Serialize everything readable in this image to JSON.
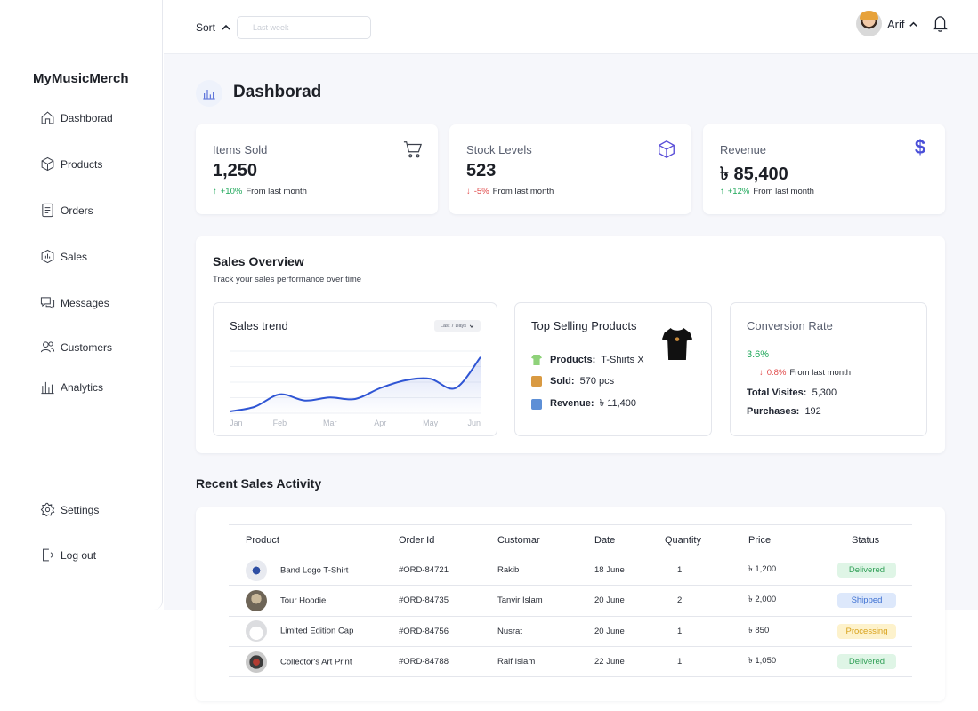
{
  "brand": "MyMusicMerch",
  "sidebar": {
    "items": [
      {
        "label": "Dashborad",
        "icon": "home-icon"
      },
      {
        "label": "Products",
        "icon": "box-icon"
      },
      {
        "label": "Orders",
        "icon": "document-icon"
      },
      {
        "label": "Sales",
        "icon": "sales-icon"
      },
      {
        "label": "Messages",
        "icon": "chat-icon"
      },
      {
        "label": "Customers",
        "icon": "users-icon"
      },
      {
        "label": "Analytics",
        "icon": "bar-chart-icon"
      }
    ],
    "bottom": [
      {
        "label": "Settings",
        "icon": "gear-icon"
      },
      {
        "label": "Log out",
        "icon": "logout-icon"
      }
    ]
  },
  "topbar": {
    "sort_label": "Sort",
    "date_placeholder": "Last week",
    "user_name": "Arif"
  },
  "page": {
    "title": "Dashborad"
  },
  "stats": [
    {
      "label": "Items Sold",
      "value": "1,250",
      "change": "+10%",
      "change_text": "From last month",
      "direction": "up",
      "icon": "cart-icon"
    },
    {
      "label": "Stock Levels",
      "value": "523",
      "change": "-5%",
      "change_text": "From last month",
      "direction": "down",
      "icon": "cube-icon"
    },
    {
      "label": "Revenue",
      "value": "৳ 85,400",
      "change": "+12%",
      "change_text": "From last month",
      "direction": "up",
      "icon": "dollar-icon"
    }
  ],
  "overview": {
    "title": "Sales Overview",
    "subtitle": "Track your sales performance over time",
    "trend": {
      "title": "Sales trend",
      "range_label": "Last 7 Days"
    },
    "top_product": {
      "title": "Top Selling Products",
      "product_label": "Products:",
      "product_value": "T-Shirts X",
      "sold_label": "Sold:",
      "sold_value": "570 pcs",
      "revenue_label": "Revenue:",
      "revenue_value": "৳ 11,400"
    },
    "conversion": {
      "title": "Conversion Rate",
      "rate": "3.6%",
      "change": "0.8%",
      "change_text": "From last month",
      "visits_label": "Total Visites:",
      "visits_value": "5,300",
      "purchases_label": "Purchases:",
      "purchases_value": "192"
    }
  },
  "chart_data": {
    "type": "area",
    "categories": [
      "Jan",
      "Feb",
      "Mar",
      "Apr",
      "May",
      "Jun"
    ],
    "x": [
      0,
      0.5,
      1,
      1.5,
      2,
      2.5,
      3,
      3.5,
      4,
      4.5,
      5
    ],
    "values": [
      0,
      3,
      11,
      7,
      9,
      8,
      15,
      20,
      21,
      15,
      35
    ],
    "title": "Sales trend",
    "xlabel": "",
    "ylabel": "",
    "ylim": [
      0,
      40
    ],
    "grid": true,
    "color": "#2f55d4"
  },
  "recent": {
    "title": "Recent Sales Activity",
    "columns": [
      "Product",
      "Order Id",
      "Customar",
      "Date",
      "Quantity",
      "Price",
      "Status"
    ],
    "rows": [
      {
        "product": "Band Logo T-Shirt",
        "order": "#ORD-84721",
        "customer": "Rakib",
        "date": "18 June",
        "qty": "1",
        "price": "৳ 1,200",
        "status": "Delivered",
        "status_kind": "delivered"
      },
      {
        "product": "Tour Hoodie",
        "order": "#ORD-84735",
        "customer": "Tanvir Islam",
        "date": "20 June",
        "qty": "2",
        "price": "৳ 2,000",
        "status": "Shipped",
        "status_kind": "shipped"
      },
      {
        "product": "Limited Edition Cap",
        "order": "#ORD-84756",
        "customer": "Nusrat",
        "date": "20 June",
        "qty": "1",
        "price": "৳ 850",
        "status": "Processing",
        "status_kind": "processing"
      },
      {
        "product": "Collector's Art Print",
        "order": "#ORD-84788",
        "customer": "Raif Islam",
        "date": "22 June",
        "qty": "1",
        "price": "৳ 1,050",
        "status": "Delivered",
        "status_kind": "delivered"
      }
    ]
  },
  "colors": {
    "accent": "#4a63d6",
    "up": "#1fa85a",
    "down": "#e04848",
    "delivered_bg": "#dff5e6",
    "delivered_fg": "#2e9e55",
    "shipped_bg": "#dde8fb",
    "shipped_fg": "#3c6fd1",
    "processing_bg": "#fdf2cc",
    "processing_fg": "#d9a21b"
  }
}
